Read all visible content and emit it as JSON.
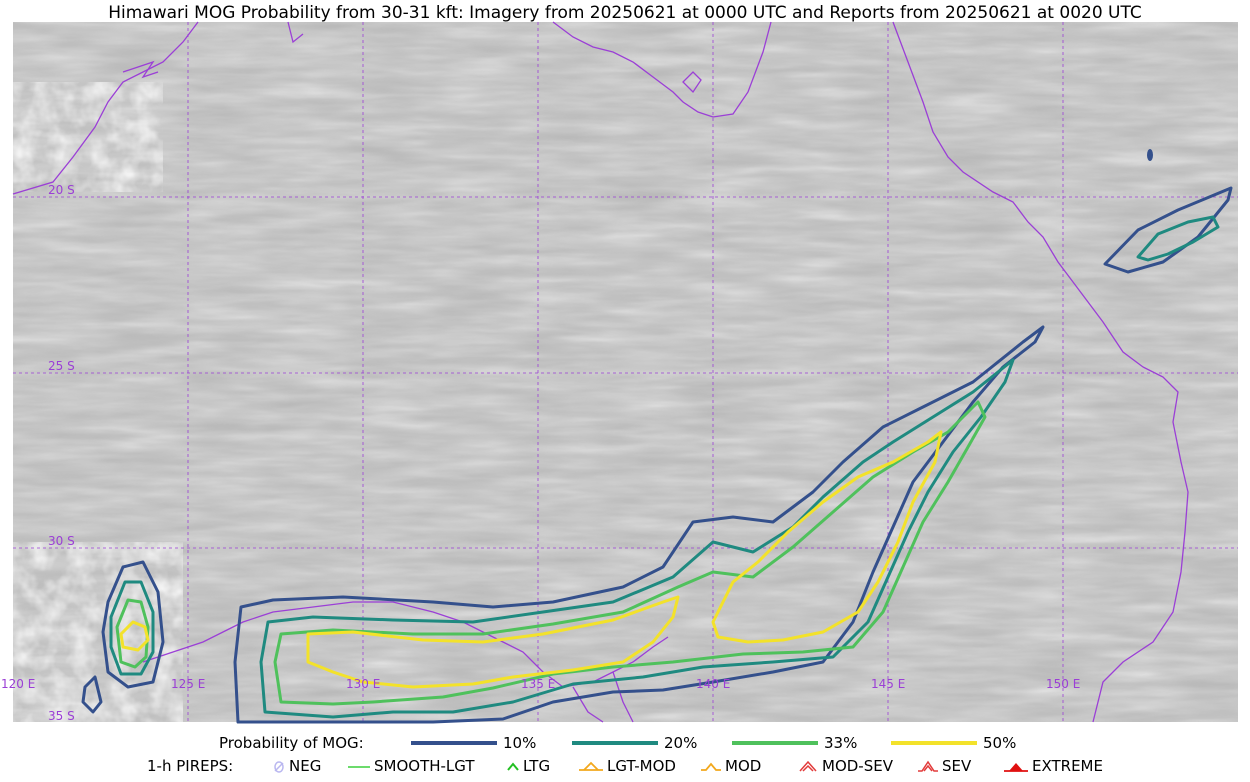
{
  "title": "Himawari MOG Probability from 30-31 kft: Imagery from 20250621 at 0000 UTC and Reports from 20250621 at 0020 UTC",
  "map": {
    "lat_labels": [
      "20 S",
      "25 S",
      "30 S",
      "35 S"
    ],
    "lon_labels": [
      "120 E",
      "125 E",
      "130 E",
      "135 E",
      "140 E",
      "145 E",
      "150 E"
    ],
    "gridline_color": "#9b3fd6",
    "coastline_color": "#9b3fd6"
  },
  "legend": {
    "probability": {
      "label": "Probability of MOG:",
      "items": [
        {
          "label": "10%",
          "color": "#34508c"
        },
        {
          "label": "20%",
          "color": "#1f8a80"
        },
        {
          "label": "33%",
          "color": "#4fc15c"
        },
        {
          "label": "50%",
          "color": "#f3e22a"
        }
      ]
    },
    "pireps": {
      "label": "1-h PIREPS:",
      "items": [
        {
          "label": "NEG",
          "icon": "neg-icon",
          "color": "#b9b7f0"
        },
        {
          "label": "SMOOTH-LGT",
          "icon": "smooth-lgt-icon",
          "color": "#3ccf3c"
        },
        {
          "label": "LTG",
          "icon": "ltg-icon",
          "color": "#22c022"
        },
        {
          "label": "LGT-MOD",
          "icon": "lgt-mod-icon",
          "color": "#f2a81d"
        },
        {
          "label": "MOD",
          "icon": "mod-icon",
          "color": "#f2a81d"
        },
        {
          "label": "MOD-SEV",
          "icon": "mod-sev-icon",
          "color": "#e23b3b"
        },
        {
          "label": "SEV",
          "icon": "sev-icon",
          "color": "#e23b3b"
        },
        {
          "label": "EXTREME",
          "icon": "extreme-icon",
          "color": "#e01010"
        }
      ]
    }
  }
}
